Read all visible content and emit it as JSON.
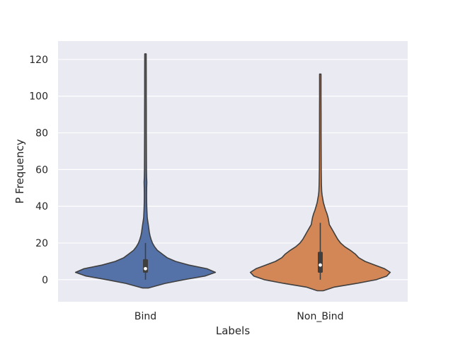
{
  "chart_data": {
    "type": "violin",
    "title": "",
    "xlabel": "Labels",
    "ylabel": "P Frequency",
    "ylim": [
      -12,
      130
    ],
    "yticks": [
      0,
      20,
      40,
      60,
      80,
      100,
      120
    ],
    "grid": true,
    "style": {
      "background": "#eaeaf2",
      "grid_color": "#ffffff",
      "edge_color": "#3f3f3f"
    },
    "categories": [
      "Bind",
      "Non_Bind"
    ],
    "series": [
      {
        "category": "Bind",
        "color": "#5471a8",
        "min": 0,
        "max": 123,
        "q1": 4,
        "median": 6,
        "q3": 11,
        "whisker_low": 0,
        "whisker_high": 20,
        "kde_y": [
          -4.5,
          -2,
          0,
          2,
          4,
          6,
          8,
          10,
          12,
          14,
          16,
          18,
          20,
          22,
          24,
          26,
          28,
          30,
          32,
          34,
          38,
          42,
          46,
          50,
          53,
          56,
          60,
          70,
          80,
          90,
          100,
          110,
          123
        ],
        "kde_width": [
          0.04,
          0.28,
          0.55,
          0.85,
          1.0,
          0.88,
          0.62,
          0.43,
          0.31,
          0.24,
          0.17,
          0.13,
          0.1,
          0.08,
          0.065,
          0.055,
          0.048,
          0.04,
          0.032,
          0.025,
          0.02,
          0.017,
          0.016,
          0.017,
          0.019,
          0.016,
          0.014,
          0.013,
          0.012,
          0.012,
          0.011,
          0.011,
          0.01
        ]
      },
      {
        "category": "Non_Bind",
        "color": "#d48756",
        "min": 0,
        "max": 112,
        "q1": 4,
        "median": 8,
        "q3": 15,
        "whisker_low": 0,
        "whisker_high": 31,
        "kde_y": [
          -6,
          -4,
          -2,
          0,
          2,
          4,
          6,
          8,
          10,
          12,
          14,
          16,
          18,
          20,
          22,
          24,
          26,
          28,
          30,
          32,
          34,
          36,
          38,
          40,
          42,
          44,
          46,
          48,
          52,
          60,
          70,
          80,
          90,
          100,
          112
        ],
        "kde_width": [
          0.04,
          0.2,
          0.52,
          0.8,
          0.95,
          1.0,
          0.92,
          0.78,
          0.64,
          0.55,
          0.5,
          0.43,
          0.35,
          0.29,
          0.25,
          0.22,
          0.19,
          0.16,
          0.13,
          0.12,
          0.11,
          0.095,
          0.075,
          0.06,
          0.045,
          0.035,
          0.026,
          0.02,
          0.016,
          0.013,
          0.012,
          0.011,
          0.011,
          0.01,
          0.01
        ]
      }
    ]
  }
}
